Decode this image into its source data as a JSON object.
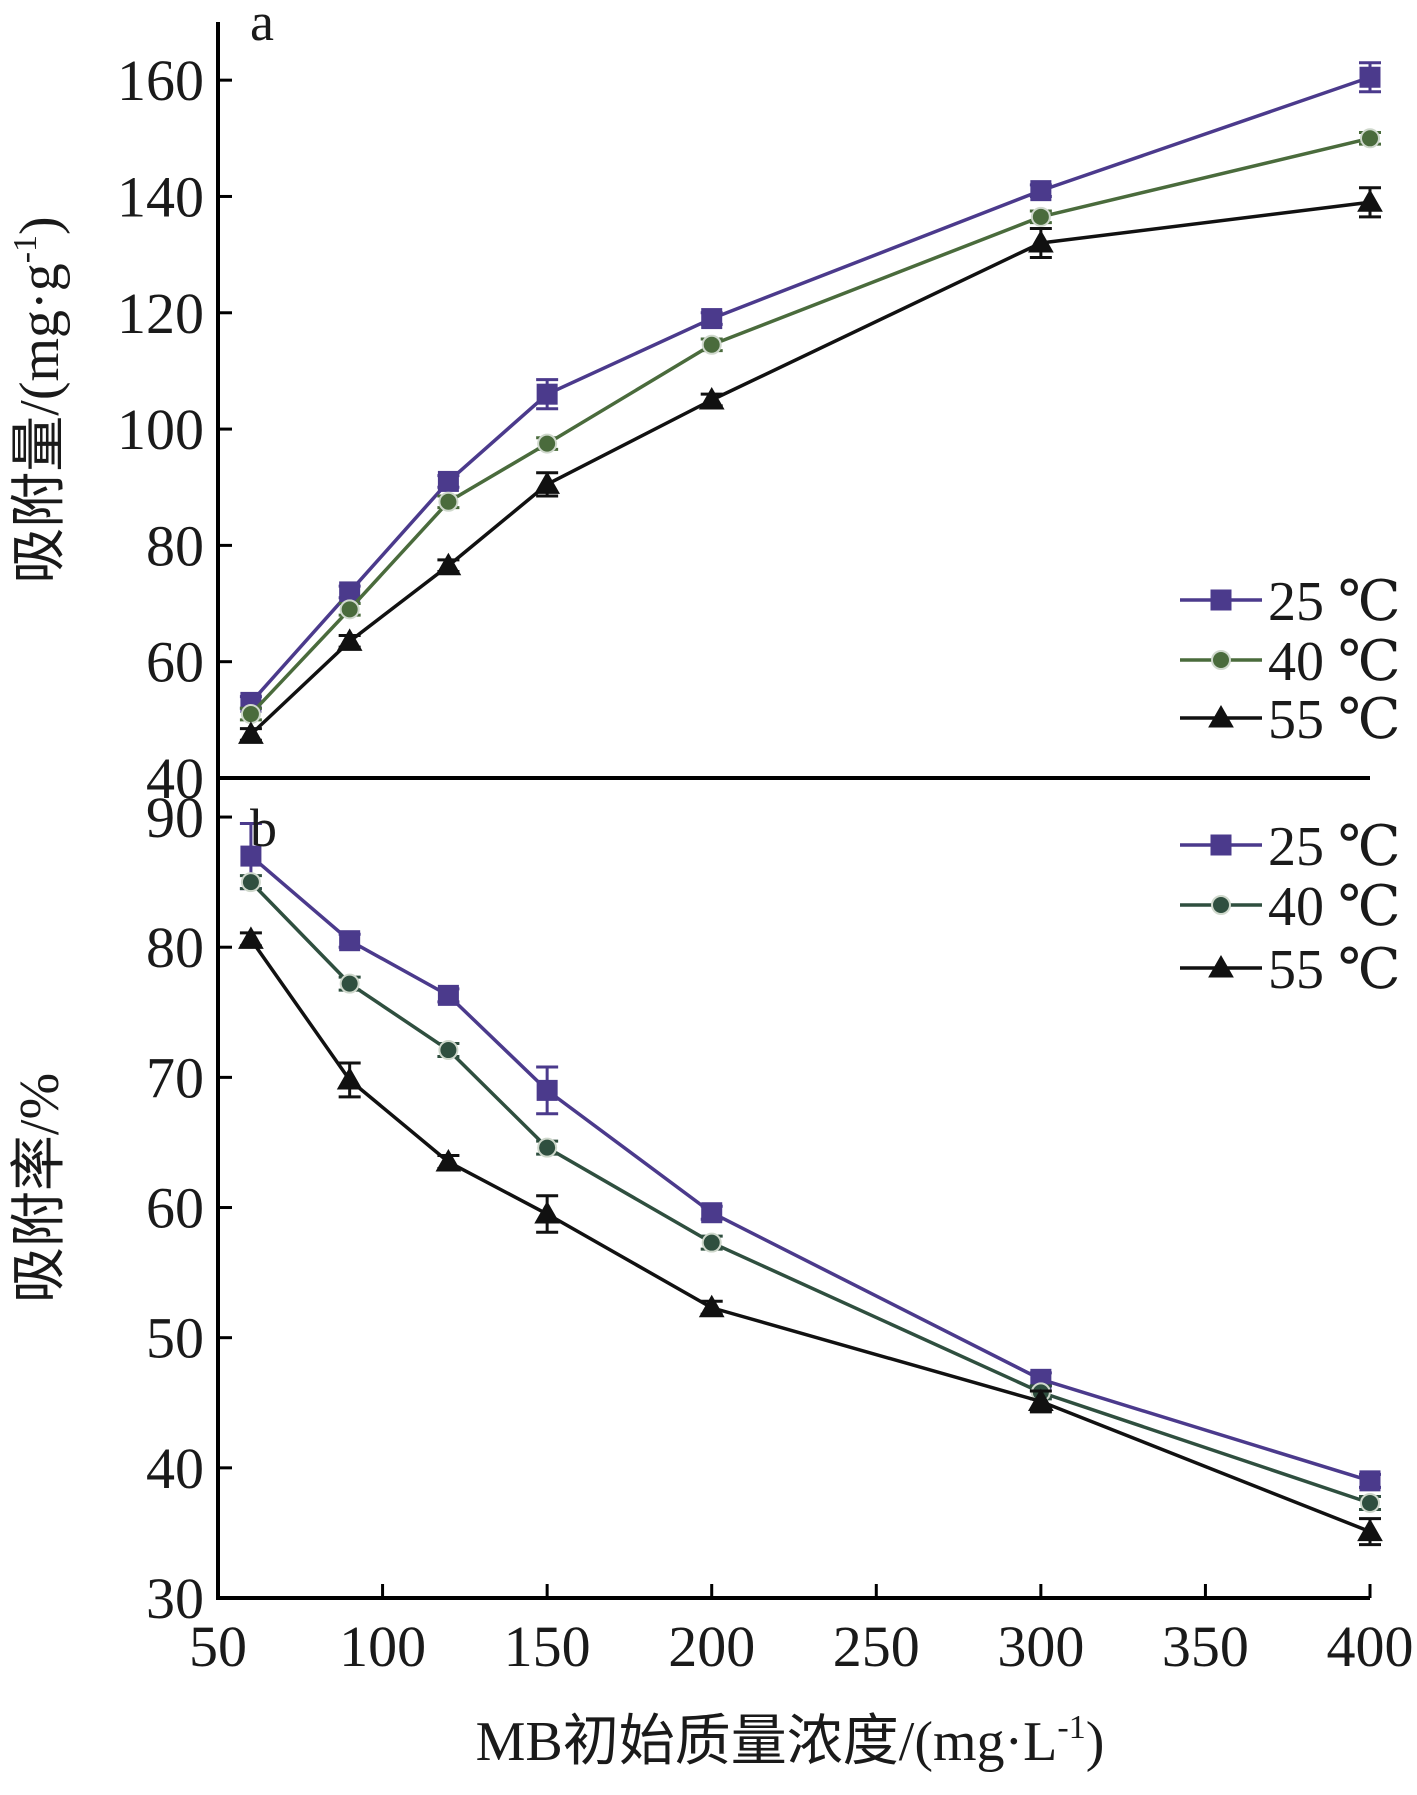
{
  "chart_data": [
    {
      "type": "line",
      "panel_label": "a",
      "title": "",
      "xlabel": "",
      "ylabel": "吸附量/(mg·g",
      "ylabel_sup": "-1",
      "ylabel_tail": ")",
      "xlim": [
        50,
        400
      ],
      "ylim": [
        40,
        170
      ],
      "yticks": [
        "40",
        "60",
        "80",
        "100",
        "120",
        "140",
        "160"
      ],
      "legend_position": "right",
      "x": [
        60,
        90,
        120,
        150,
        200,
        300,
        400
      ],
      "series": [
        {
          "name": "25 ℃",
          "color": "#4b3a8c",
          "marker": "square",
          "values": [
            53,
            72,
            91,
            106,
            119,
            141,
            160.5
          ],
          "errors": [
            1.0,
            1.0,
            1.0,
            2.5,
            1.0,
            1.0,
            2.5
          ]
        },
        {
          "name": "40 ℃",
          "color": "#4a6b3c",
          "marker": "circle",
          "values": [
            51,
            69,
            87.5,
            97.5,
            114.5,
            136.5,
            150
          ],
          "errors": [
            1.0,
            1.0,
            1.0,
            1.0,
            1.0,
            1.0,
            1.0
          ]
        },
        {
          "name": "55 ℃",
          "color": "#111111",
          "marker": "triangle",
          "values": [
            47.5,
            63.5,
            76.5,
            90.5,
            105,
            132,
            139
          ],
          "errors": [
            1.0,
            1.0,
            1.0,
            2.0,
            1.0,
            2.5,
            2.5
          ]
        }
      ]
    },
    {
      "type": "line",
      "panel_label": "b",
      "title": "",
      "xlabel": "MB初始质量浓度/(mg·L",
      "xlabel_sup": "-1",
      "xlabel_tail": ")",
      "ylabel": "吸附率/%",
      "xlim": [
        50,
        400
      ],
      "xticks": [
        "50",
        "100",
        "150",
        "200",
        "250",
        "300",
        "350",
        "400"
      ],
      "ylim": [
        30,
        93
      ],
      "yticks": [
        "30",
        "40",
        "50",
        "60",
        "70",
        "80",
        "90"
      ],
      "legend_position": "top-right",
      "x": [
        60,
        90,
        120,
        150,
        200,
        300,
        400
      ],
      "series": [
        {
          "name": "25 ℃",
          "color": "#4b3a8c",
          "marker": "square",
          "values": [
            87,
            80.5,
            76.3,
            69,
            59.6,
            46.8,
            39
          ],
          "errors": [
            2.5,
            0.5,
            0.5,
            1.8,
            0.5,
            0.5,
            0.5
          ]
        },
        {
          "name": "40 ℃",
          "color": "#2f4f3f",
          "marker": "circle",
          "values": [
            85,
            77.2,
            72.1,
            64.6,
            57.3,
            45.8,
            37.3
          ],
          "errors": [
            0.5,
            0.5,
            0.5,
            0.5,
            0.5,
            0.5,
            0.5
          ]
        },
        {
          "name": "55 ℃",
          "color": "#111111",
          "marker": "triangle",
          "values": [
            80.6,
            69.8,
            63.5,
            59.5,
            52.3,
            45.1,
            35.1
          ],
          "errors": [
            0.5,
            1.3,
            0.5,
            1.4,
            0.5,
            0.8,
            1.0
          ]
        }
      ]
    }
  ]
}
